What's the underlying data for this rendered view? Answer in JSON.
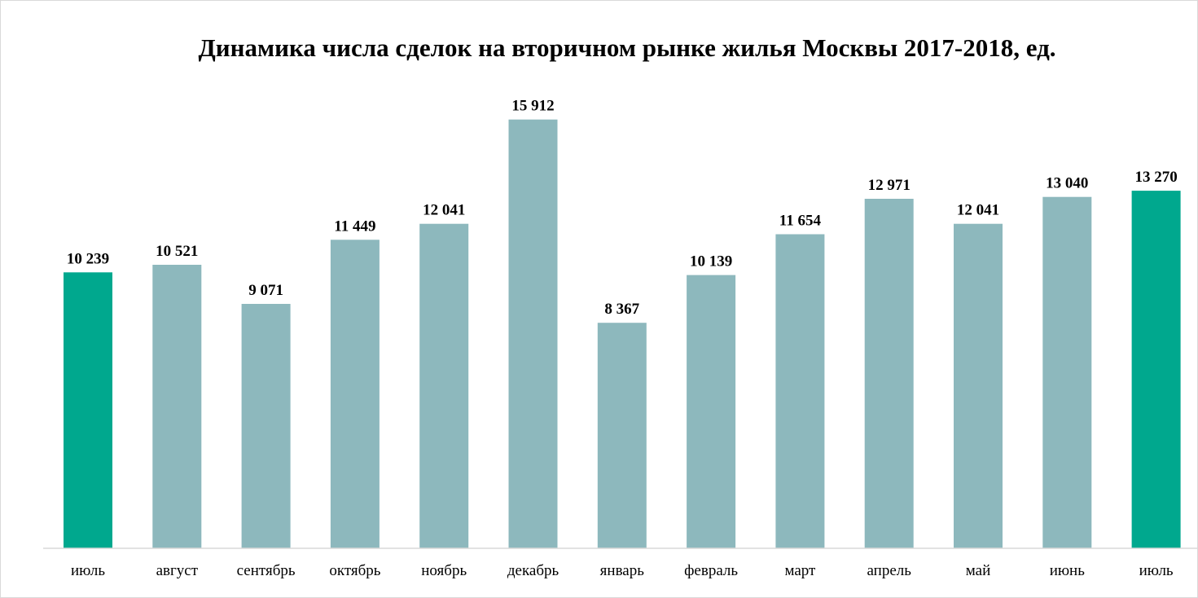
{
  "chart_data": {
    "type": "bar",
    "title": "Динамика числа сделок на вторичном рынке жилья Москвы 2017-2018, ед.",
    "xlabel": "",
    "ylabel": "",
    "ylim": [
      0,
      16900
    ],
    "grid": false,
    "legend": "none",
    "categories": [
      "июль",
      "август",
      "сентябрь",
      "октябрь",
      "ноябрь",
      "декабрь",
      "январь",
      "февраль",
      "март",
      "апрель",
      "май",
      "июнь",
      "июль"
    ],
    "values": [
      10239,
      10521,
      9071,
      11449,
      12041,
      15912,
      8367,
      10139,
      11654,
      12971,
      12041,
      13040,
      13270
    ],
    "value_labels": [
      "10 239",
      "10 521",
      "9 071",
      "11 449",
      "12 041",
      "15 912",
      "8 367",
      "10 139",
      "11 654",
      "12 971",
      "12 041",
      "13 040",
      "13 270"
    ],
    "bar_colors": [
      "#00a88e",
      "#8db8bd",
      "#8db8bd",
      "#8db8bd",
      "#8db8bd",
      "#8db8bd",
      "#8db8bd",
      "#8db8bd",
      "#8db8bd",
      "#8db8bd",
      "#8db8bd",
      "#8db8bd",
      "#00a88e"
    ],
    "colors": {
      "highlight": "#00a88e",
      "regular": "#8db8bd",
      "axis": "#d9d9d9"
    }
  }
}
